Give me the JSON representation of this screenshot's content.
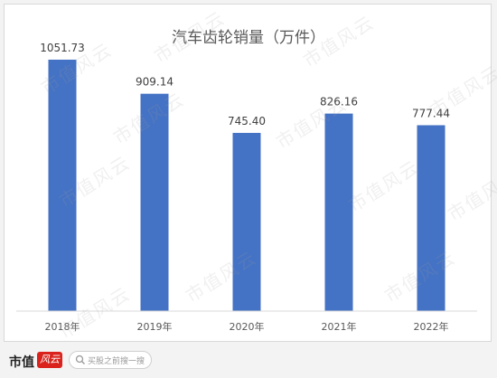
{
  "chart_data": {
    "type": "bar",
    "title": "汽车齿轮销量（万件）",
    "categories": [
      "2018年",
      "2019年",
      "2020年",
      "2021年",
      "2022年"
    ],
    "values": [
      1051.73,
      909.14,
      745.4,
      826.16,
      777.44
    ],
    "value_labels": [
      "1051.73",
      "909.14",
      "745.40",
      "826.16",
      "777.44"
    ],
    "ylim": [
      0,
      1150
    ],
    "grid": false,
    "bar_color": "#4472c4"
  },
  "watermark_text": "市值风云",
  "footer": {
    "logo_text": "市值",
    "logo_badge": "风云",
    "search_placeholder": "买股之前搜一搜",
    "search_icon": "search-icon"
  }
}
